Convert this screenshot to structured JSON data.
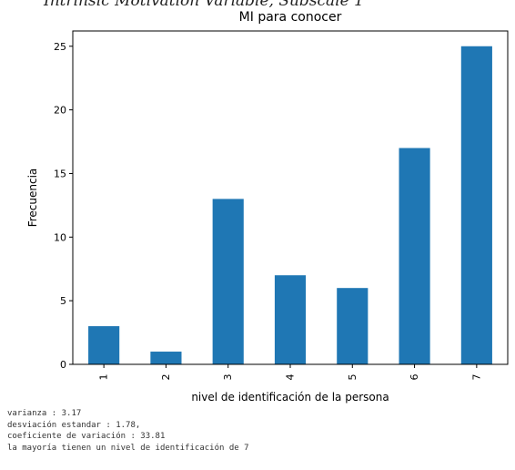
{
  "caption": "Intrinsic Motivation Variable, Subscale 1",
  "chart_data": {
    "type": "bar",
    "title": "MI para conocer",
    "xlabel": "nivel de identificación de la persona",
    "ylabel": "Frecuencia",
    "categories": [
      "1",
      "2",
      "3",
      "4",
      "5",
      "6",
      "7"
    ],
    "values": [
      3,
      1,
      13,
      7,
      6,
      17,
      25
    ],
    "ylim": [
      0,
      26.2
    ],
    "yticks": [
      "0",
      "5",
      "10",
      "15",
      "20",
      "25"
    ],
    "bar_color": "#1f77b4",
    "grid": false
  },
  "stats": [
    "varianza : 3.17",
    "desviación estandar : 1.78,",
    "coeficiente de variación : 33.81",
    "la mayoría tienen un nivel de identificación de 7"
  ]
}
